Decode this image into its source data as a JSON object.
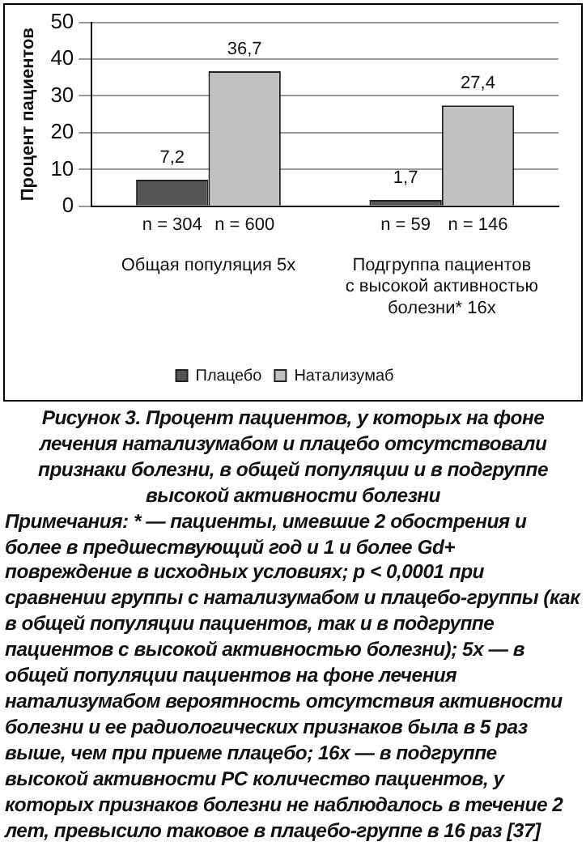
{
  "chart_data": {
    "type": "bar",
    "title": "Рисунок 3. Процент пациентов, у которых на фоне лечения натализумабом и плацебо отсутствовали признаки болезни, в общей популяции и в подгруппе высокой активности болезни",
    "ylabel": "Процент пациентов",
    "categories": [
      "Общая популяция 5x",
      "Подгруппа пациентов\nс высокой активностью\nболезни* 16x"
    ],
    "series": [
      {
        "name": "Плацебо",
        "color": "#555555",
        "values": [
          7.2,
          1.7
        ],
        "value_labels": [
          "7,2",
          "1,7"
        ]
      },
      {
        "name": "Натализумаб",
        "color": "#c0c0c0",
        "values": [
          36.7,
          27.4
        ],
        "value_labels": [
          "36,7",
          "27,4"
        ]
      }
    ],
    "ylim": [
      0,
      50
    ],
    "yticks": [
      0,
      10,
      20,
      30,
      40,
      50
    ],
    "grid": "y",
    "legend": "bottom",
    "annotations": [
      "n = 304",
      "n = 600",
      "n = 59",
      "n = 146",
      "Примечания: * — пациенты, имевшие 2 обострения и более в предшествующий год и 1 и более Gd+ повреждение в исходных условиях; p < 0,0001 при сравнении группы с натализумабом и плацебо-группы (как в общей популяции пациентов, так и в подгруппе пациентов с высокой активностью болезни); 5x — в общей популяции пациентов на фоне лечения натализумабом вероятность отсутствия активности болезни и ее радиологических признаков была в 5 раз выше, чем при приеме плацебо; 16x — в подгруппе высокой активности РС количество пациентов, у которых признаков болезни не наблюдалось в течение 2 лет, превысило таковое в плацебо-группе в 16 раз [37]"
    ]
  }
}
